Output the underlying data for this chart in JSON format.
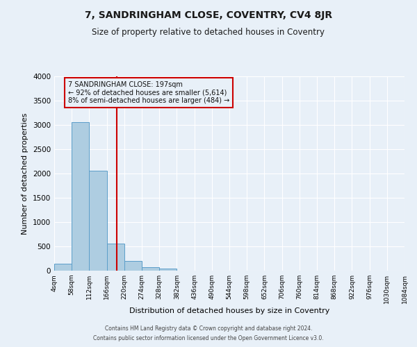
{
  "title": "7, SANDRINGHAM CLOSE, COVENTRY, CV4 8JR",
  "subtitle": "Size of property relative to detached houses in Coventry",
  "xlabel": "Distribution of detached houses by size in Coventry",
  "ylabel": "Number of detached properties",
  "bin_edges": [
    4,
    58,
    112,
    166,
    220,
    274,
    328,
    382,
    436,
    490,
    544,
    598,
    652,
    706,
    760,
    814,
    868,
    922,
    976,
    1030,
    1084
  ],
  "bar_heights": [
    150,
    3050,
    2060,
    555,
    205,
    65,
    45,
    0,
    0,
    0,
    0,
    0,
    0,
    0,
    0,
    0,
    0,
    0,
    0,
    0
  ],
  "bar_color": "#aecde1",
  "bar_edge_color": "#5b9ec9",
  "vline_x": 197,
  "vline_color": "#cc0000",
  "ylim": [
    0,
    4000
  ],
  "yticks": [
    0,
    500,
    1000,
    1500,
    2000,
    2500,
    3000,
    3500,
    4000
  ],
  "xtick_labels": [
    "4sqm",
    "58sqm",
    "112sqm",
    "166sqm",
    "220sqm",
    "274sqm",
    "328sqm",
    "382sqm",
    "436sqm",
    "490sqm",
    "544sqm",
    "598sqm",
    "652sqm",
    "706sqm",
    "760sqm",
    "814sqm",
    "868sqm",
    "922sqm",
    "976sqm",
    "1030sqm",
    "1084sqm"
  ],
  "annotation_line1": "7 SANDRINGHAM CLOSE: 197sqm",
  "annotation_line2": "← 92% of detached houses are smaller (5,614)",
  "annotation_line3": "8% of semi-detached houses are larger (484) →",
  "annotation_box_color": "#cc0000",
  "footer_line1": "Contains HM Land Registry data © Crown copyright and database right 2024.",
  "footer_line2": "Contains public sector information licensed under the Open Government Licence v3.0.",
  "background_color": "#e8f0f8",
  "grid_color": "#ffffff",
  "title_fontsize": 10,
  "subtitle_fontsize": 8.5,
  "ylabel_fontsize": 8,
  "xlabel_fontsize": 8
}
